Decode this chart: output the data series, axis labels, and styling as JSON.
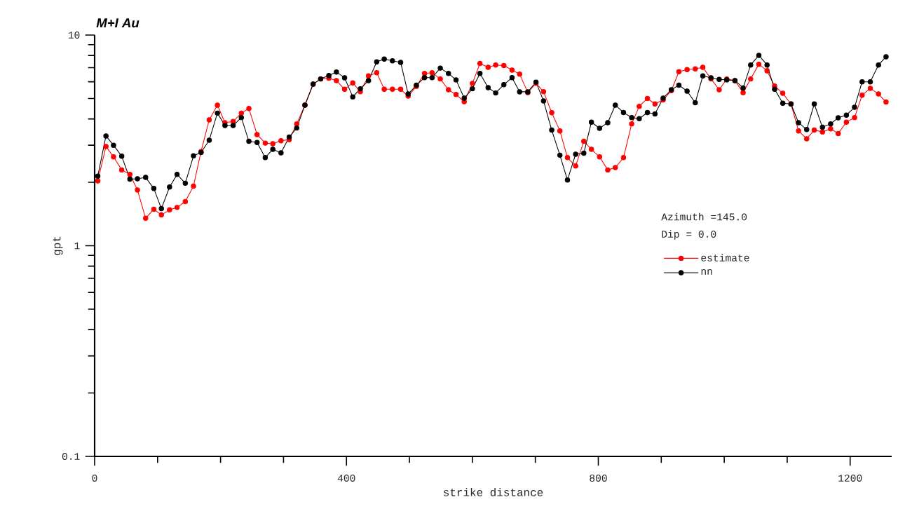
{
  "chart_data": {
    "type": "line",
    "title": "M+I Au",
    "xlabel": "strike distance",
    "ylabel": "gpt",
    "annotations": [
      "Azimuth =145.0",
      "Dip =      0.0"
    ],
    "x": [
      5,
      18,
      30,
      43,
      56,
      68,
      81,
      94,
      106,
      119,
      131,
      144,
      157,
      169,
      182,
      195,
      207,
      220,
      233,
      245,
      258,
      271,
      283,
      296,
      309,
      321,
      334,
      347,
      359,
      372,
      384,
      397,
      410,
      422,
      435,
      448,
      460,
      473,
      486,
      498,
      511,
      524,
      536,
      549,
      562,
      574,
      587,
      600,
      612,
      625,
      637,
      650,
      663,
      675,
      688,
      701,
      713,
      726,
      739,
      751,
      764,
      777,
      789,
      802,
      815,
      827,
      840,
      853,
      865,
      878,
      890,
      903,
      916,
      928,
      941,
      954,
      966,
      979,
      992,
      1004,
      1017,
      1030,
      1042,
      1055,
      1068,
      1080,
      1093,
      1106,
      1118,
      1131,
      1143,
      1156,
      1169,
      1181,
      1194,
      1207,
      1219,
      1232,
      1245,
      1257
    ],
    "series": [
      {
        "name": "estimate",
        "color": "#ff0000",
        "values": [
          2.03,
          2.96,
          2.64,
          2.29,
          2.18,
          1.84,
          1.35,
          1.49,
          1.4,
          1.48,
          1.52,
          1.62,
          1.92,
          2.8,
          3.96,
          4.65,
          3.84,
          3.89,
          4.26,
          4.48,
          3.37,
          3.07,
          3.05,
          3.15,
          3.19,
          3.79,
          4.65,
          5.85,
          6.19,
          6.24,
          6.08,
          5.53,
          5.93,
          5.39,
          6.4,
          6.62,
          5.53,
          5.53,
          5.53,
          5.13,
          5.71,
          6.57,
          6.62,
          6.19,
          5.5,
          5.22,
          4.83,
          5.9,
          7.33,
          7.03,
          7.21,
          7.17,
          6.82,
          6.53,
          5.33,
          5.9,
          5.39,
          4.28,
          3.51,
          2.62,
          2.39,
          3.13,
          2.87,
          2.64,
          2.29,
          2.35,
          2.62,
          3.79,
          4.59,
          5.0,
          4.71,
          4.92,
          5.45,
          6.7,
          6.86,
          6.91,
          7.03,
          6.19,
          5.5,
          6.19,
          6.08,
          5.33,
          6.19,
          7.27,
          6.77,
          5.73,
          5.29,
          4.71,
          3.51,
          3.22,
          3.54,
          3.47,
          3.59,
          3.41,
          3.86,
          4.06,
          5.18,
          5.59,
          5.25,
          4.81
        ]
      },
      {
        "name": "nn",
        "color": "#000000",
        "values": [
          2.14,
          3.32,
          3.0,
          2.66,
          2.07,
          2.08,
          2.11,
          1.87,
          1.5,
          1.9,
          2.18,
          1.98,
          2.67,
          2.77,
          3.17,
          4.26,
          3.72,
          3.72,
          4.06,
          3.13,
          3.09,
          2.62,
          2.87,
          2.76,
          3.28,
          3.62,
          4.65,
          5.85,
          6.19,
          6.43,
          6.68,
          6.27,
          5.09,
          5.56,
          6.08,
          7.46,
          7.69,
          7.55,
          7.42,
          5.25,
          5.78,
          6.28,
          6.28,
          6.97,
          6.57,
          6.13,
          5.02,
          5.56,
          6.57,
          5.63,
          5.31,
          5.82,
          6.28,
          5.38,
          5.38,
          5.98,
          4.87,
          3.54,
          2.69,
          2.05,
          2.72,
          2.75,
          3.86,
          3.61,
          3.84,
          4.65,
          4.29,
          4.06,
          4.01,
          4.29,
          4.22,
          5.02,
          5.5,
          5.78,
          5.42,
          4.77,
          6.4,
          6.27,
          6.16,
          6.13,
          6.08,
          5.61,
          7.21,
          8.01,
          7.21,
          5.53,
          4.75,
          4.71,
          3.84,
          3.56,
          4.71,
          3.65,
          3.79,
          4.05,
          4.17,
          4.54,
          6.0,
          6.0,
          7.21,
          7.89
        ]
      }
    ],
    "xlim": [
      0,
      1266
    ],
    "ylim": [
      0.1,
      10
    ],
    "log": "y",
    "xticks": [
      0,
      {
        "value": 100,
        "label": null
      },
      {
        "value": 200,
        "label": null
      },
      {
        "value": 300,
        "label": null
      },
      400,
      {
        "value": 500,
        "label": null
      },
      {
        "value": 600,
        "label": null
      },
      {
        "value": 700,
        "label": null
      },
      800,
      {
        "value": 900,
        "label": null
      },
      {
        "value": 1000,
        "label": null
      },
      {
        "value": 1100,
        "label": null
      },
      1200
    ],
    "yticks": [
      0.1,
      {
        "value": 0.2,
        "label": null
      },
      {
        "value": 0.3,
        "label": null
      },
      {
        "value": 0.4,
        "label": null
      },
      {
        "value": 0.5,
        "label": null
      },
      {
        "value": 0.6,
        "label": null
      },
      {
        "value": 0.7,
        "label": null
      },
      {
        "value": 0.8,
        "label": null
      },
      {
        "value": 0.9,
        "label": null
      },
      1,
      {
        "value": 2,
        "label": null
      },
      {
        "value": 3,
        "label": null
      },
      {
        "value": 4,
        "label": null
      },
      {
        "value": 5,
        "label": null
      },
      {
        "value": 6,
        "label": null
      },
      {
        "value": 7,
        "label": null
      },
      {
        "value": 8,
        "label": null
      },
      {
        "value": 9,
        "label": null
      },
      10
    ],
    "grid": false,
    "legend": "right",
    "marker": "circle",
    "line_style": "solid"
  }
}
